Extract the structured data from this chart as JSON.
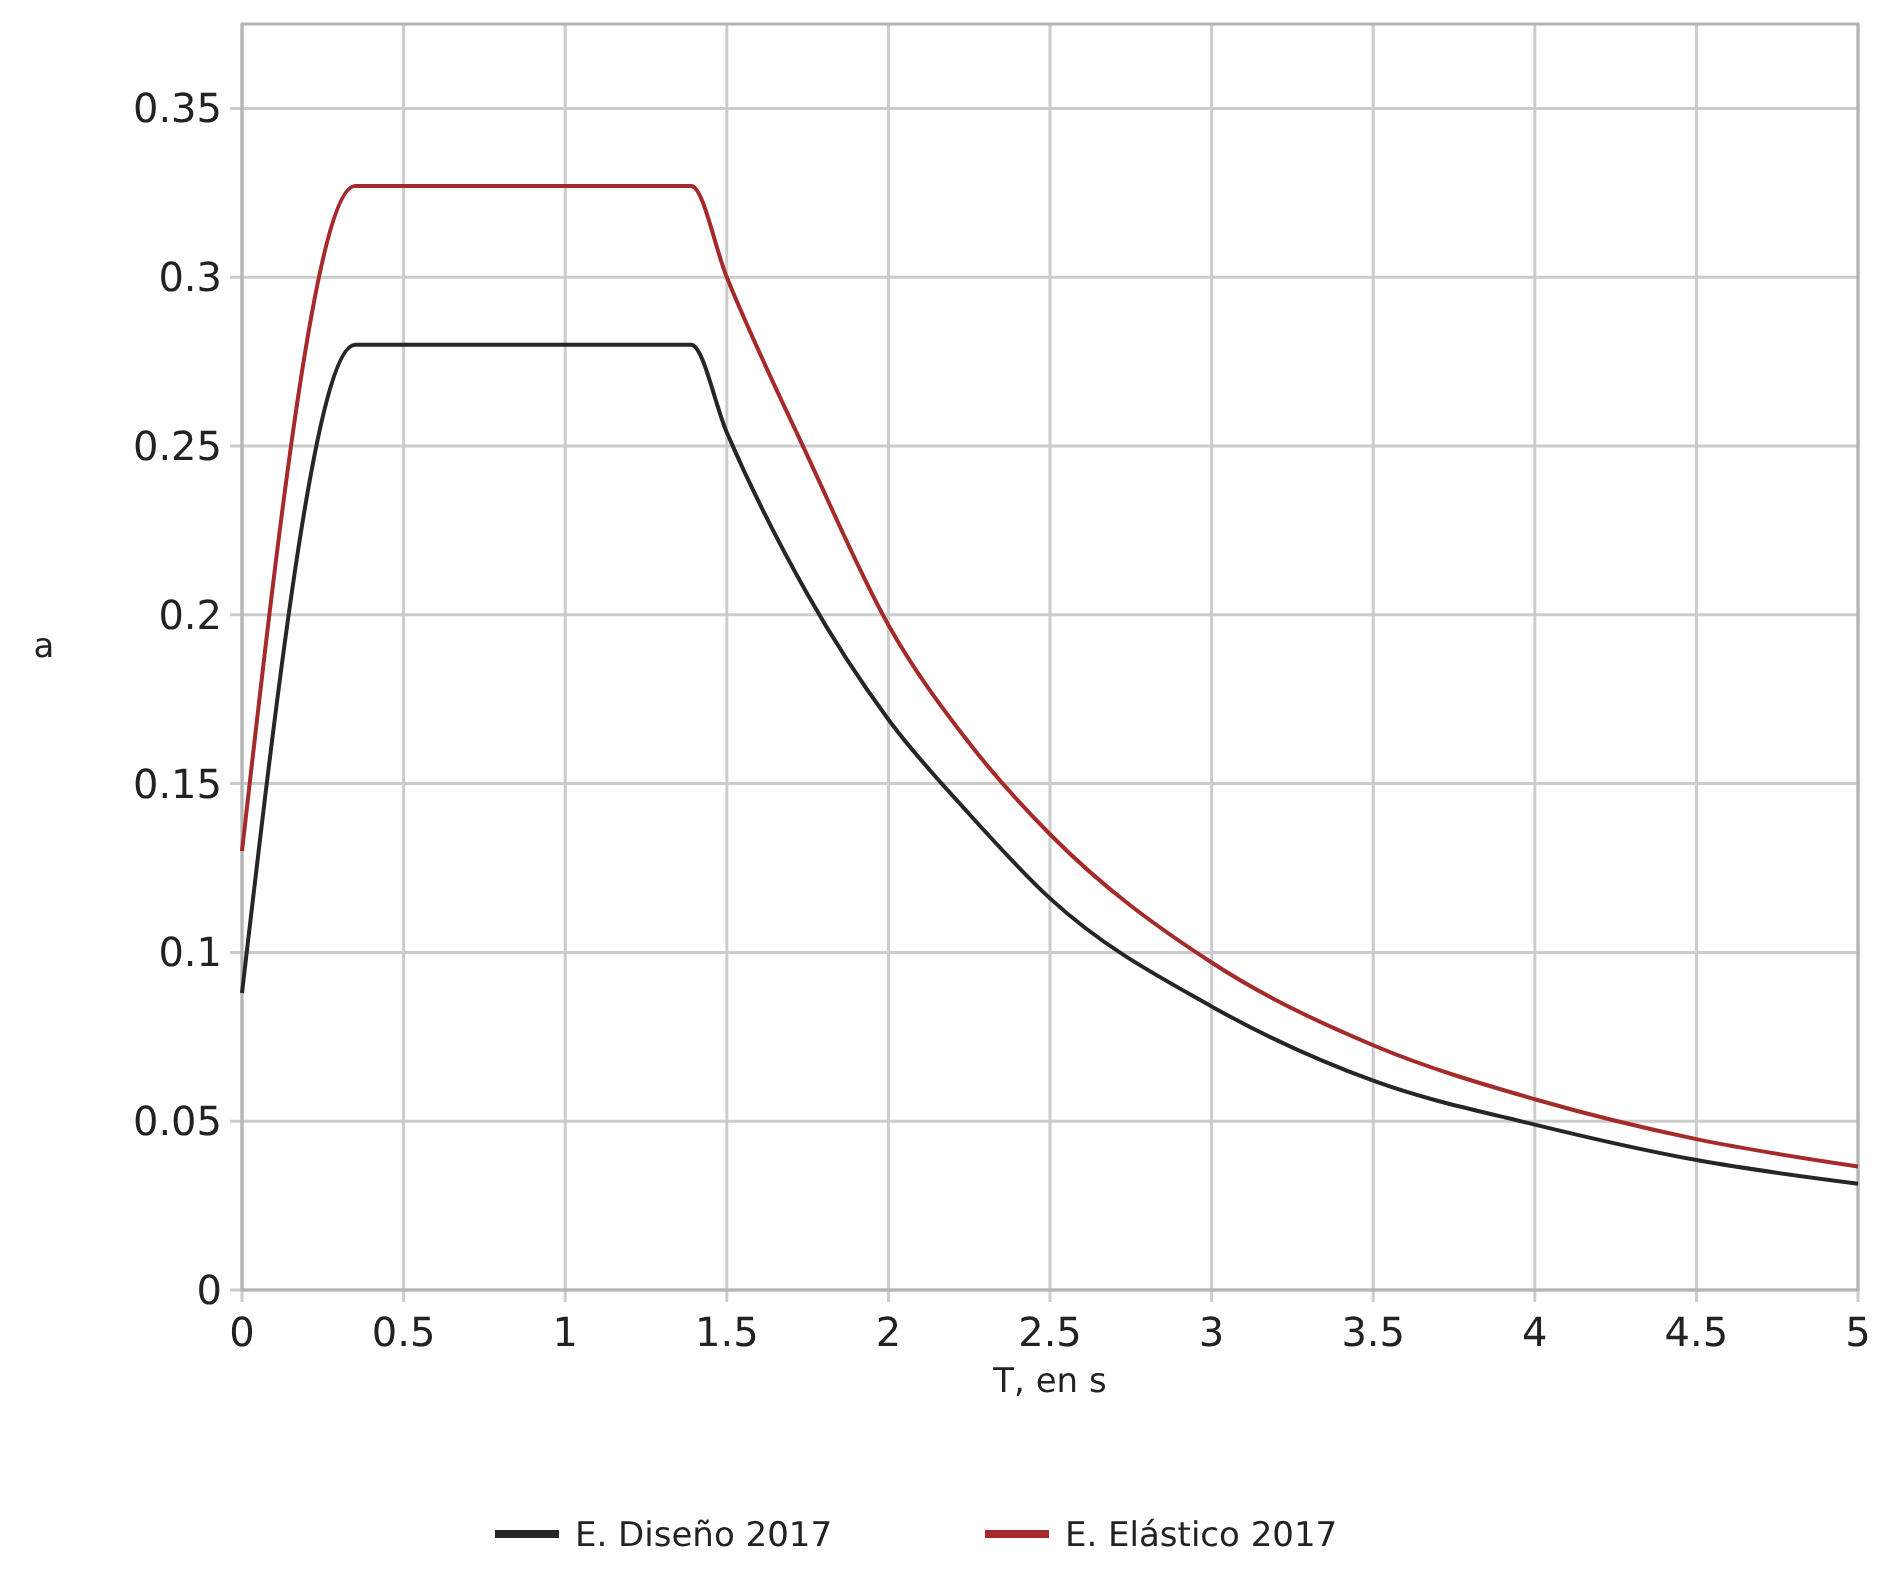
{
  "chart_data": {
    "type": "line",
    "xlabel": "T, en s",
    "ylabel": "a",
    "xlim": [
      0,
      5
    ],
    "xticks": [
      0,
      0.5,
      1,
      1.5,
      2,
      2.5,
      3,
      3.5,
      4,
      4.5,
      5
    ],
    "ylim": [
      0,
      0.375
    ],
    "yticks": [
      0,
      0.05,
      0.1,
      0.15,
      0.2,
      0.25,
      0.3,
      0.35
    ],
    "grid": true,
    "legend": "bottom",
    "marker": "none",
    "line_style": "solid",
    "series": [
      {
        "name": "E. Diseño 2017",
        "color": "#262626",
        "x": [
          0,
          0.35,
          1.39,
          1.5,
          1.75,
          2,
          2.25,
          2.5,
          3,
          3.5,
          4,
          4.5,
          5
        ],
        "values": [
          0.088,
          0.28,
          0.28,
          0.254,
          0.206,
          0.169,
          0.141,
          0.116,
          0.084,
          0.062,
          0.049,
          0.0385,
          0.0315
        ]
      },
      {
        "name": "E. Elástico 2017",
        "color": "#a52a2a",
        "x": [
          0,
          0.35,
          1.39,
          1.5,
          1.75,
          2,
          2.25,
          2.5,
          3,
          3.5,
          4,
          4.5,
          5
        ],
        "values": [
          0.13,
          0.327,
          0.327,
          0.3,
          0.247,
          0.197,
          0.162,
          0.135,
          0.097,
          0.0725,
          0.0565,
          0.0447,
          0.0366
        ]
      }
    ]
  }
}
